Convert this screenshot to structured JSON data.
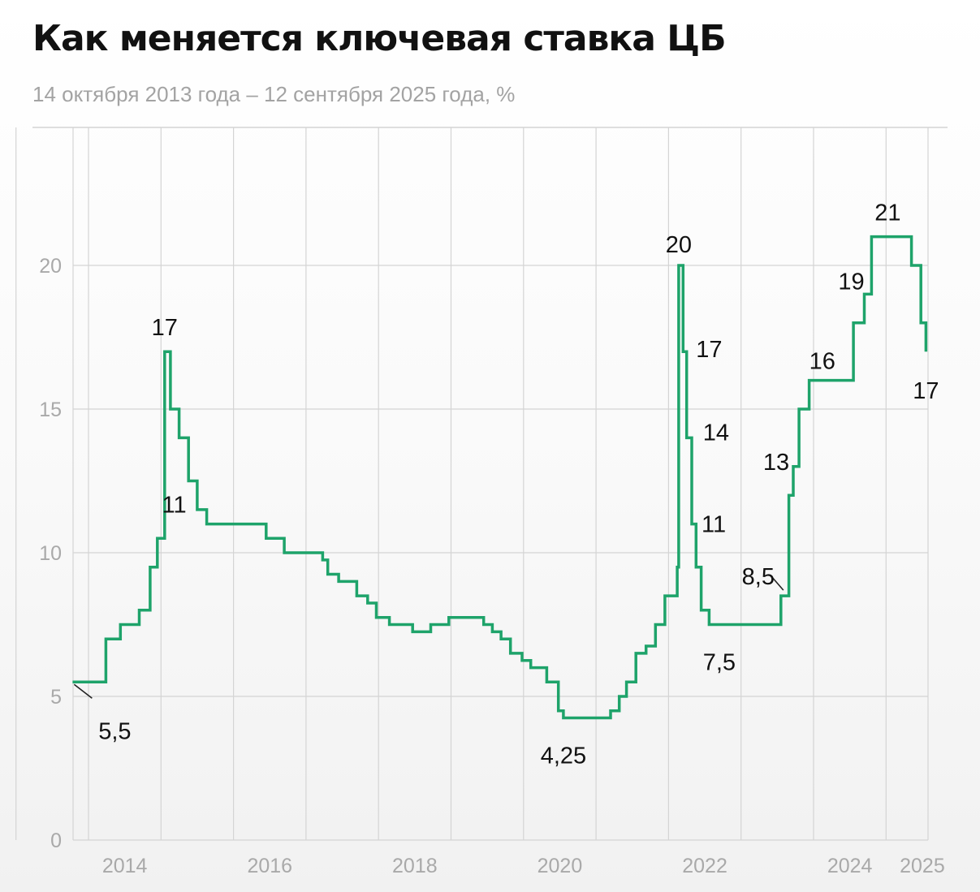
{
  "title": "Как меняется ключевая ставка ЦБ",
  "subtitle": "14 октября 2013 года – 12 сентября 2025 года, %",
  "colors": {
    "line": "#1ea36a",
    "grid": "#d4d4d4",
    "tick_text": "#a9a9a9",
    "label_text": "#111111"
  },
  "chart_data": {
    "type": "line",
    "step": true,
    "title": "Как меняется ключевая ставка ЦБ",
    "subtitle": "14 октября 2013 года – 12 сентября 2025 года, %",
    "xlabel": "",
    "ylabel": "",
    "grid": true,
    "ylim": [
      0,
      22
    ],
    "yticks": [
      0,
      5,
      10,
      15,
      20
    ],
    "xticks": [
      2014,
      2016,
      2018,
      2020,
      2022,
      2024,
      2025
    ],
    "xlim": [
      2013.0,
      2025.0
    ],
    "series": [
      {
        "name": "",
        "x": [
          2013.78,
          2014.12,
          2014.24,
          2014.44,
          2014.7,
          2014.85,
          2014.95,
          2015.05,
          2015.13,
          2015.25,
          2015.38,
          2015.5,
          2015.63,
          2016.45,
          2016.7,
          2017.23,
          2017.3,
          2017.45,
          2017.7,
          2017.85,
          2017.97,
          2018.15,
          2018.47,
          2018.72,
          2018.97,
          2019.45,
          2019.57,
          2019.69,
          2019.82,
          2019.98,
          2020.1,
          2020.32,
          2020.48,
          2020.55,
          2021.2,
          2021.32,
          2021.42,
          2021.55,
          2021.69,
          2021.82,
          2021.95,
          2022.12,
          2022.14,
          2022.2,
          2022.25,
          2022.32,
          2022.38,
          2022.45,
          2022.56,
          2022.7,
          2023.55,
          2023.66,
          2023.72,
          2023.8,
          2023.94,
          2024.12,
          2024.55,
          2024.7,
          2024.8,
          2025.0,
          2025.35,
          2025.48,
          2025.55
        ],
        "y": [
          5.5,
          5.5,
          7.0,
          7.5,
          8.0,
          9.5,
          10.5,
          17.0,
          15.0,
          14.0,
          12.5,
          11.5,
          11.0,
          10.5,
          10.0,
          9.75,
          9.25,
          9.0,
          8.5,
          8.25,
          7.75,
          7.5,
          7.25,
          7.5,
          7.75,
          7.5,
          7.25,
          7.0,
          6.5,
          6.25,
          6.0,
          5.5,
          4.5,
          4.25,
          4.5,
          5.0,
          5.5,
          6.5,
          6.75,
          7.5,
          8.5,
          9.5,
          20.0,
          17.0,
          14.0,
          11.0,
          9.5,
          8.0,
          7.5,
          7.5,
          8.5,
          12.0,
          13.0,
          15.0,
          16.0,
          16.0,
          18.0,
          19.0,
          21.0,
          21.0,
          20.0,
          18.0,
          17.0
        ]
      }
    ],
    "annotations": [
      {
        "text": "5,5",
        "x": 2013.78,
        "y": 5.5
      },
      {
        "text": "17",
        "x": 2015.05,
        "y": 17.0
      },
      {
        "text": "11",
        "x": 2015.63,
        "y": 11.0
      },
      {
        "text": "4,25",
        "x": 2020.55,
        "y": 4.25
      },
      {
        "text": "20",
        "x": 2022.14,
        "y": 20.0
      },
      {
        "text": "17",
        "x": 2022.2,
        "y": 17.0
      },
      {
        "text": "14",
        "x": 2022.25,
        "y": 14.0
      },
      {
        "text": "11",
        "x": 2022.32,
        "y": 11.0
      },
      {
        "text": "7,5",
        "x": 2022.7,
        "y": 7.5
      },
      {
        "text": "8,5",
        "x": 2023.55,
        "y": 8.5
      },
      {
        "text": "13",
        "x": 2023.72,
        "y": 13.0
      },
      {
        "text": "16",
        "x": 2024.12,
        "y": 16.0
      },
      {
        "text": "19",
        "x": 2024.7,
        "y": 19.0
      },
      {
        "text": "21",
        "x": 2024.8,
        "y": 21.0
      },
      {
        "text": "17",
        "x": 2025.55,
        "y": 17.0
      }
    ]
  }
}
